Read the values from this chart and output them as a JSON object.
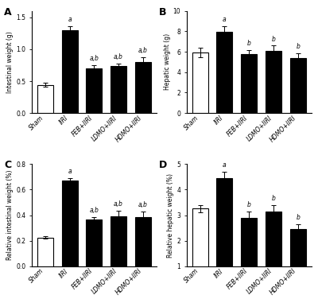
{
  "panels": [
    {
      "label": "A",
      "ylabel": "Intestinal weight (g)",
      "ylim": [
        0,
        1.6
      ],
      "yticks": [
        0.0,
        0.5,
        1.0,
        1.5
      ],
      "categories": [
        "Sham",
        "IIRI",
        "FEB+IIRI",
        "LDMO+IIRI",
        "HDMO+IIRI"
      ],
      "values": [
        0.44,
        1.3,
        0.7,
        0.74,
        0.8
      ],
      "errors": [
        0.03,
        0.06,
        0.05,
        0.04,
        0.07
      ],
      "colors": [
        "white",
        "black",
        "black",
        "black",
        "black"
      ],
      "sig_labels": [
        "",
        "a",
        "a,b",
        "a,b",
        "a,b"
      ]
    },
    {
      "label": "B",
      "ylabel": "Hepatic weight (g)",
      "ylim": [
        0,
        10
      ],
      "yticks": [
        0,
        2,
        4,
        6,
        8,
        10
      ],
      "categories": [
        "Sham",
        "IIRI",
        "FEB+IIRI",
        "LDMO+IIRI",
        "HDMO+IIRI"
      ],
      "values": [
        5.95,
        7.95,
        5.75,
        6.05,
        5.35
      ],
      "errors": [
        0.45,
        0.55,
        0.4,
        0.55,
        0.5
      ],
      "colors": [
        "white",
        "black",
        "black",
        "black",
        "black"
      ],
      "sig_labels": [
        "",
        "a",
        "b",
        "b",
        "b"
      ]
    },
    {
      "label": "C",
      "ylabel": "Relative intestinal weight (%)",
      "ylim": [
        0,
        0.8
      ],
      "yticks": [
        0.0,
        0.2,
        0.4,
        0.6,
        0.8
      ],
      "categories": [
        "Sham",
        "IIRI",
        "FEB+IIRI",
        "LDMO+IIRI",
        "HDMO+IIRI"
      ],
      "values": [
        0.225,
        0.67,
        0.365,
        0.39,
        0.385
      ],
      "errors": [
        0.01,
        0.02,
        0.02,
        0.045,
        0.045
      ],
      "colors": [
        "white",
        "black",
        "black",
        "black",
        "black"
      ],
      "sig_labels": [
        "",
        "a",
        "a,b",
        "a,b",
        "a,b"
      ]
    },
    {
      "label": "D",
      "ylabel": "Relative hepatic weight (%)",
      "ylim": [
        1,
        5
      ],
      "yticks": [
        1,
        2,
        3,
        4,
        5
      ],
      "categories": [
        "Sham",
        "IIRI",
        "FEB+IIRI",
        "LDMO+IIRI",
        "HDMO+IIRI"
      ],
      "values": [
        3.25,
        4.45,
        2.9,
        3.15,
        2.45
      ],
      "errors": [
        0.15,
        0.25,
        0.25,
        0.25,
        0.2
      ],
      "colors": [
        "white",
        "black",
        "black",
        "black",
        "black"
      ],
      "sig_labels": [
        "",
        "a",
        "b",
        "b",
        "b"
      ]
    }
  ],
  "background_color": "white",
  "bar_width": 0.65,
  "edgecolor": "black",
  "linewidth": 0.8
}
